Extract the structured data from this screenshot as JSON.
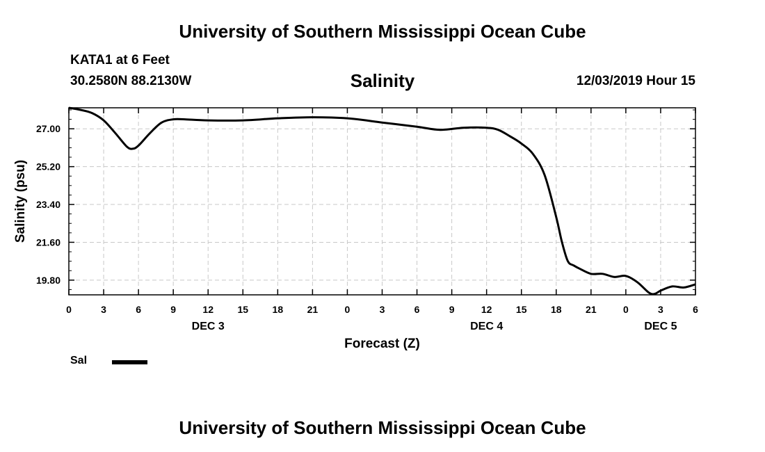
{
  "header": {
    "title": "University of Southern Mississippi Ocean Cube",
    "station": "KATA1 at 6 Feet",
    "coordinates": "30.2580N 88.2130W",
    "chart_title": "Salinity",
    "datetime": "12/03/2019 Hour 15"
  },
  "footer": {
    "title": "University of Southern Mississippi Ocean Cube"
  },
  "legend": {
    "label": "Sal",
    "color": "#000000"
  },
  "chart_data": {
    "type": "line",
    "title": "Salinity",
    "xlabel": "Forecast (Z)",
    "ylabel": "Salinity (psu)",
    "x_unit": "hours",
    "xlim": [
      0,
      54
    ],
    "ylim": [
      19.1,
      28.0
    ],
    "y_ticks": [
      "19.80",
      "21.60",
      "23.40",
      "25.20",
      "27.00"
    ],
    "x_ticks": [
      "0",
      "3",
      "6",
      "9",
      "12",
      "15",
      "18",
      "21",
      "0",
      "3",
      "6",
      "9",
      "12",
      "15",
      "18",
      "21",
      "0",
      "3",
      "6"
    ],
    "day_labels": [
      {
        "label": "DEC 3",
        "hour": 12
      },
      {
        "label": "DEC 4",
        "hour": 36
      },
      {
        "label": "DEC 5",
        "hour": 51
      }
    ],
    "grid": true,
    "series": [
      {
        "name": "Sal",
        "x": [
          0,
          1,
          2,
          3,
          4,
          5,
          5.5,
          6,
          7,
          8,
          9,
          10,
          12,
          15,
          18,
          21,
          24,
          27,
          30,
          32,
          34,
          36,
          37,
          38,
          39,
          40,
          41,
          42,
          42.5,
          43,
          43.5,
          44,
          45,
          46,
          47,
          48,
          49,
          50,
          50.5,
          51,
          52,
          53,
          54
        ],
        "values": [
          28.0,
          27.9,
          27.75,
          27.4,
          26.8,
          26.15,
          26.05,
          26.2,
          26.8,
          27.3,
          27.45,
          27.45,
          27.4,
          27.4,
          27.5,
          27.55,
          27.5,
          27.3,
          27.1,
          26.95,
          27.05,
          27.05,
          26.95,
          26.65,
          26.3,
          25.8,
          24.8,
          22.8,
          21.6,
          20.7,
          20.5,
          20.35,
          20.1,
          20.1,
          19.95,
          20.0,
          19.7,
          19.2,
          19.15,
          19.3,
          19.5,
          19.45,
          19.6
        ]
      }
    ]
  }
}
